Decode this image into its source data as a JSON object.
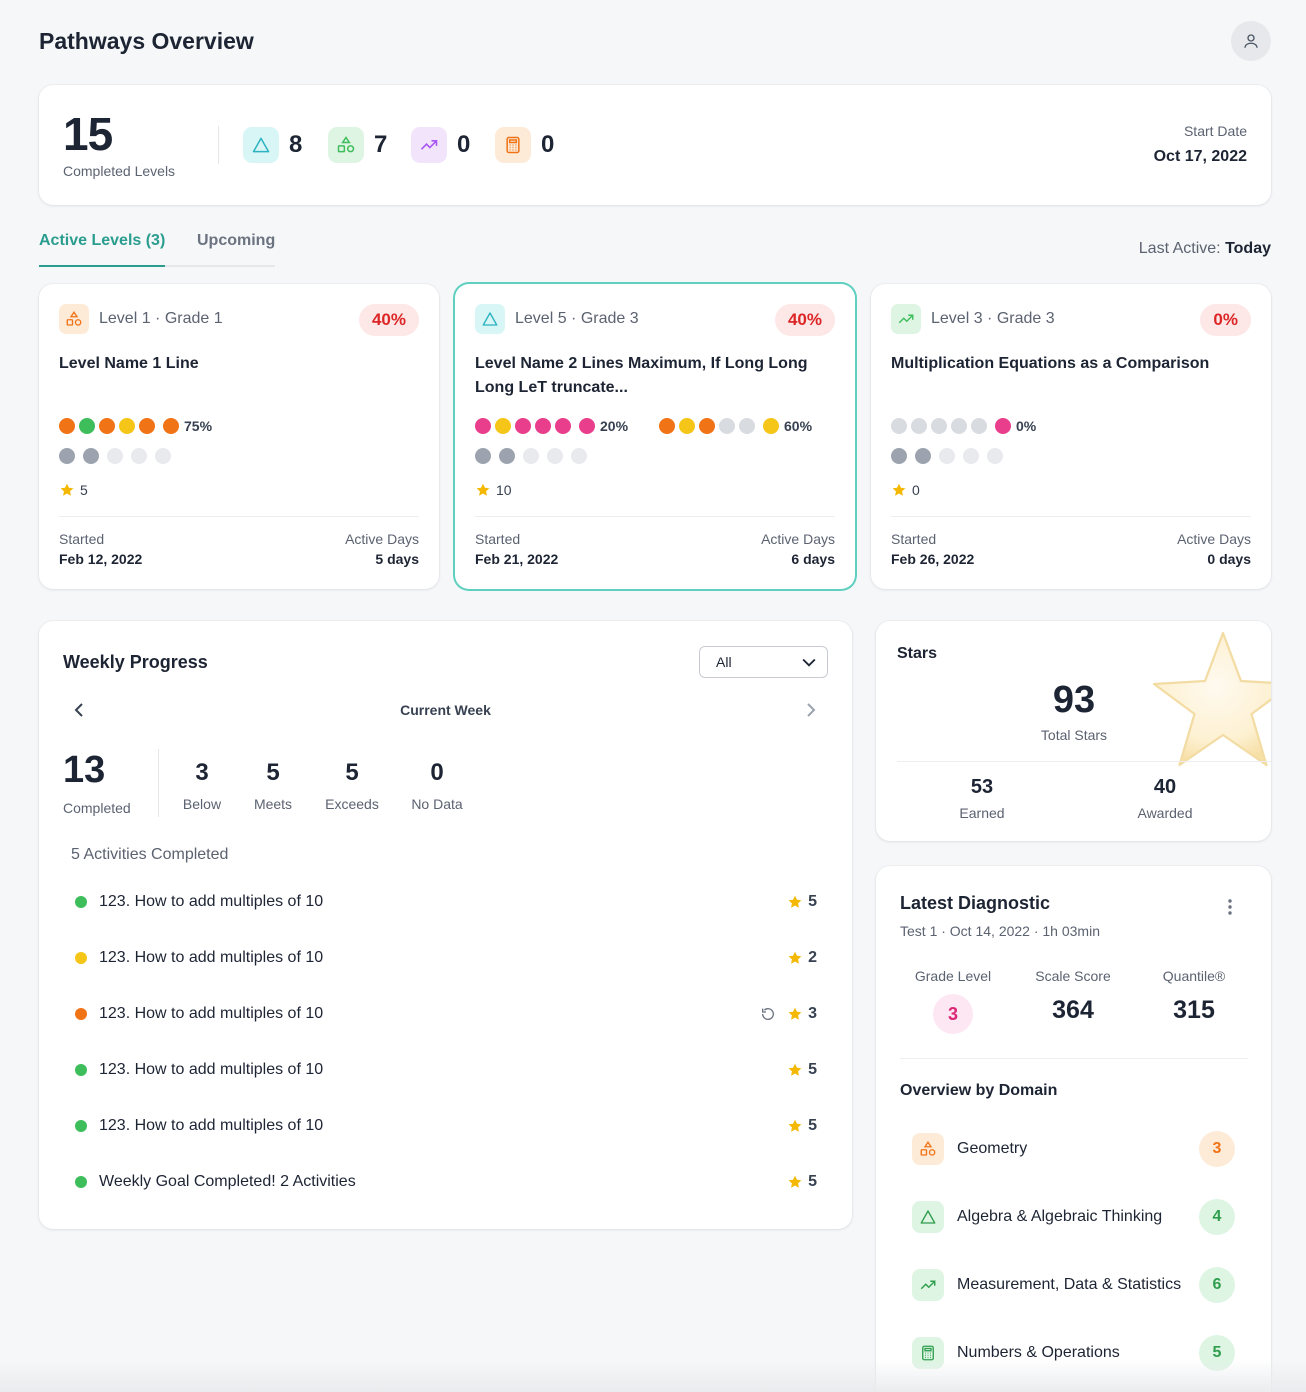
{
  "header": {
    "title": "Pathways Overview",
    "avatar_icon": "user-icon"
  },
  "summary": {
    "completed_count": "15",
    "completed_label": "Completed Levels",
    "domains": [
      {
        "icon": "triangle-icon",
        "value": "8"
      },
      {
        "icon": "shapes-icon",
        "value": "7"
      },
      {
        "icon": "trend-up-icon",
        "value": "0"
      },
      {
        "icon": "calculator-icon",
        "value": "0"
      }
    ],
    "start_label": "Start Date",
    "start_value": "Oct 17, 2022"
  },
  "tabs": {
    "active": "Active Levels (3)",
    "upcoming": "Upcoming"
  },
  "last_active": {
    "label": "Last Active:",
    "value": "Today"
  },
  "levels": [
    {
      "title": "Level 1 · Grade 1",
      "percent": "40%",
      "name": "Level Name 1 Line",
      "group1_percent": "75%",
      "stars": "5",
      "started_label": "Started",
      "started": "Feb 12, 2022",
      "days_label": "Active Days",
      "days": "5 days"
    },
    {
      "title": "Level 5 · Grade 3",
      "percent": "40%",
      "name": "Level Name 2 Lines Maximum, If Long Long Long LeT truncate...",
      "group1_percent": "20%",
      "group2_percent": "60%",
      "stars": "10",
      "started_label": "Started",
      "started": "Feb 21, 2022",
      "days_label": "Active Days",
      "days": "6 days"
    },
    {
      "title": "Level 3 · Grade 3",
      "percent": "0%",
      "name": "Multiplication Equations as a Comparison",
      "group1_percent": "0%",
      "stars": "0",
      "started_label": "Started",
      "started": "Feb 26, 2022",
      "days_label": "Active Days",
      "days": "0 days"
    }
  ],
  "weekly": {
    "title": "Weekly Progress",
    "filter_value": "All",
    "week_label": "Current Week",
    "completed": "13",
    "completed_label": "Completed",
    "stats": [
      {
        "value": "3",
        "label": "Below"
      },
      {
        "value": "5",
        "label": "Meets"
      },
      {
        "value": "5",
        "label": "Exceeds"
      },
      {
        "value": "0",
        "label": "No Data"
      }
    ],
    "activities_label": "5 Activities Completed",
    "activities": [
      {
        "name": "123. How to add multiples of 10",
        "stars": "5",
        "status_color": "#3ebd5b"
      },
      {
        "name": "123. How to add multiples of 10",
        "stars": "2",
        "status_color": "#f5c518"
      },
      {
        "name": "123. How to add multiples of 10",
        "stars": "3",
        "status_color": "#f07316",
        "retry": true
      },
      {
        "name": "123. How to add multiples of 10",
        "stars": "5",
        "status_color": "#3ebd5b"
      },
      {
        "name": "123. How to add multiples of 10",
        "stars": "5",
        "status_color": "#3ebd5b"
      },
      {
        "name": "Weekly Goal Completed! 2 Activities",
        "stars": "5",
        "status_color": "#3ebd5b"
      }
    ]
  },
  "stars": {
    "title": "Stars",
    "total": "93",
    "total_label": "Total Stars",
    "earned": "53",
    "earned_label": "Earned",
    "awarded": "40",
    "awarded_label": "Awarded"
  },
  "diagnostic": {
    "title": "Latest Diagnostic",
    "subtitle": "Test 1 · Oct 14, 2022 · 1h 03min",
    "grade_label": "Grade Level",
    "grade": "3",
    "scale_label": "Scale Score",
    "scale": "364",
    "quantile_label": "Quantile®",
    "quantile": "315",
    "overview_label": "Overview by Domain",
    "domains": [
      {
        "name": "Geometry",
        "value": "3",
        "icon": "shapes-icon"
      },
      {
        "name": "Algebra & Algebraic Thinking",
        "value": "4",
        "icon": "triangle-icon"
      },
      {
        "name": "Measurement, Data & Statistics",
        "value": "6",
        "icon": "trend-up-icon"
      },
      {
        "name": "Numbers & Operations",
        "value": "5",
        "icon": "calculator-icon"
      }
    ]
  },
  "colors": {
    "accent": "#2a9d8f",
    "red": "#dc2626",
    "orange": "#f07316",
    "green": "#3ebd5b",
    "yellow": "#f5c518",
    "pink": "#e83e8c",
    "gray": "#9ca3af",
    "light": "#e5e7eb",
    "star": "#f5b800"
  }
}
